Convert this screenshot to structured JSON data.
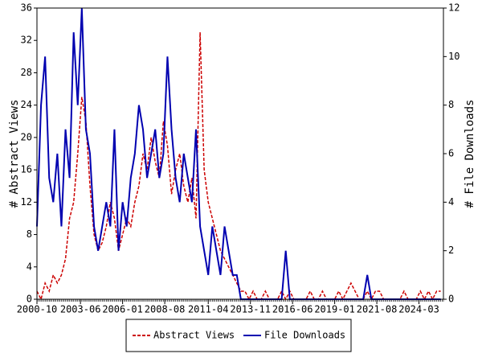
{
  "chart_data": {
    "type": "line",
    "ylabel": "# Abstract Views",
    "y2label": "# File Downloads",
    "x": [
      "2000-10",
      "2001-01",
      "2001-04",
      "2001-07",
      "2001-10",
      "2002-01",
      "2002-04",
      "2002-07",
      "2002-10",
      "2003-01",
      "2003-04",
      "2003-07",
      "2003-10",
      "2004-01",
      "2004-04",
      "2004-07",
      "2004-10",
      "2005-01",
      "2005-04",
      "2005-07",
      "2005-10",
      "2006-01",
      "2006-04",
      "2006-07",
      "2006-10",
      "2007-01",
      "2007-04",
      "2007-07",
      "2007-10",
      "2008-01",
      "2008-04",
      "2008-07",
      "2008-10",
      "2009-01",
      "2009-04",
      "2009-07",
      "2009-10",
      "2010-01",
      "2010-04",
      "2010-07",
      "2010-10",
      "2011-01",
      "2011-04",
      "2011-07",
      "2011-10",
      "2012-01",
      "2012-04",
      "2012-07",
      "2012-10",
      "2013-01",
      "2013-04",
      "2013-07",
      "2013-10",
      "2014-01",
      "2014-04",
      "2014-07",
      "2014-10",
      "2015-01",
      "2015-04",
      "2015-07",
      "2015-10",
      "2016-01",
      "2016-04",
      "2016-07",
      "2016-10",
      "2017-01",
      "2017-04",
      "2017-07",
      "2017-10",
      "2018-01",
      "2018-04",
      "2018-07",
      "2018-10",
      "2019-01",
      "2019-04",
      "2019-07",
      "2019-10",
      "2020-01",
      "2020-04",
      "2020-07",
      "2020-10",
      "2021-01",
      "2021-04",
      "2021-07",
      "2021-10",
      "2022-01",
      "2022-04",
      "2022-07",
      "2022-10",
      "2023-01",
      "2023-04",
      "2023-07",
      "2023-10",
      "2024-01",
      "2024-04",
      "2024-07",
      "2024-10",
      "2025-01",
      "2025-04",
      "2025-07"
    ],
    "xlim": [
      "2000-10",
      "2025-09"
    ],
    "xticks": [
      "2000-10",
      "2003-06",
      "2006-01",
      "2008-08",
      "2011-04",
      "2013-11",
      "2016-06",
      "2019-01",
      "2021-08",
      "2024-03"
    ],
    "ylim": [
      0,
      36
    ],
    "yticks": [
      0,
      4,
      8,
      12,
      16,
      20,
      24,
      28,
      32,
      36
    ],
    "y2lim": [
      0,
      12
    ],
    "y2ticks": [
      0,
      2,
      4,
      6,
      8,
      10,
      12
    ],
    "legend": "bottom",
    "series": [
      {
        "name": "Abstract Views",
        "color": "#cc0000",
        "dash": true,
        "values": [
          1,
          0,
          2,
          1,
          3,
          2,
          3,
          5,
          10,
          12,
          18,
          25,
          22,
          14,
          8,
          6,
          7,
          9,
          12,
          10,
          6,
          8,
          10,
          9,
          12,
          14,
          18,
          16,
          20,
          17,
          15,
          22,
          19,
          13,
          16,
          18,
          14,
          12,
          15,
          10,
          33,
          16,
          12,
          10,
          8,
          6,
          5,
          4,
          3,
          2,
          1,
          1,
          0,
          1,
          0,
          0,
          1,
          0,
          0,
          0,
          1,
          0,
          1,
          0,
          0,
          0,
          0,
          1,
          0,
          0,
          1,
          0,
          0,
          0,
          1,
          0,
          1,
          2,
          1,
          0,
          0,
          1,
          0,
          1,
          1,
          0,
          0,
          0,
          0,
          0,
          1,
          0,
          0,
          0,
          1,
          0,
          1,
          0,
          1,
          1
        ]
      },
      {
        "name": "File Downloads",
        "color": "#0000b0",
        "axis": "y2",
        "values": [
          3,
          8,
          10,
          5,
          4,
          6,
          3,
          7,
          5,
          11,
          8,
          12,
          7,
          6,
          3,
          2,
          3,
          4,
          3,
          7,
          2,
          4,
          3,
          5,
          6,
          8,
          7,
          5,
          6,
          7,
          5,
          6,
          10,
          7,
          5,
          4,
          6,
          5,
          4,
          7,
          3,
          2,
          1,
          3,
          2,
          1,
          3,
          2,
          1,
          1,
          0,
          0,
          0,
          0,
          0,
          0,
          0,
          0,
          0,
          0,
          0,
          2,
          0,
          0,
          0,
          0,
          0,
          0,
          0,
          0,
          0,
          0,
          0,
          0,
          0,
          0,
          0,
          0,
          0,
          0,
          0,
          1,
          0,
          0,
          0,
          0,
          0,
          0,
          0,
          0,
          0,
          0,
          0,
          0,
          0,
          0,
          0,
          0,
          0,
          0
        ]
      }
    ]
  }
}
